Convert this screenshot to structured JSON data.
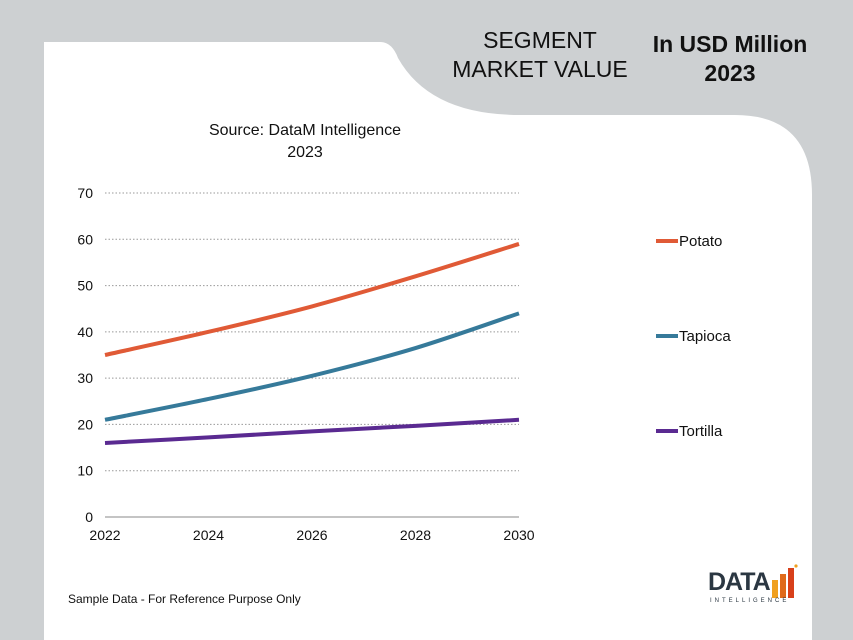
{
  "header": {
    "segment_line1": "SEGMENT",
    "segment_line2": "MARKET VALUE",
    "usd_line1": "In USD Million",
    "usd_line2": "2023"
  },
  "chart_data": {
    "type": "line",
    "title": "Source: DataM Intelligence",
    "subtitle": "2023",
    "x": [
      2022,
      2024,
      2026,
      2028,
      2030
    ],
    "xticks": [
      "2022",
      "2024",
      "2026",
      "2028",
      "2030"
    ],
    "xlim": [
      2022,
      2030
    ],
    "ylim": [
      0,
      70
    ],
    "yticks": [
      "0",
      "10",
      "20",
      "30",
      "40",
      "50",
      "60",
      "70"
    ],
    "grid": true,
    "legend_position": "right",
    "series": [
      {
        "name": "Potato",
        "color": "#e05a36",
        "values": [
          35,
          40,
          45.5,
          52,
          59
        ]
      },
      {
        "name": "Tapioca",
        "color": "#367a9a",
        "values": [
          21,
          25.5,
          30.5,
          36.5,
          44
        ]
      },
      {
        "name": "Tortilla",
        "color": "#5a2a91",
        "values": [
          16,
          17.2,
          18.5,
          19.7,
          21
        ]
      }
    ]
  },
  "footnote": "Sample Data - For Reference Purpose Only",
  "logo": {
    "word": "DATA",
    "sub": "INTELLIGENCE"
  }
}
